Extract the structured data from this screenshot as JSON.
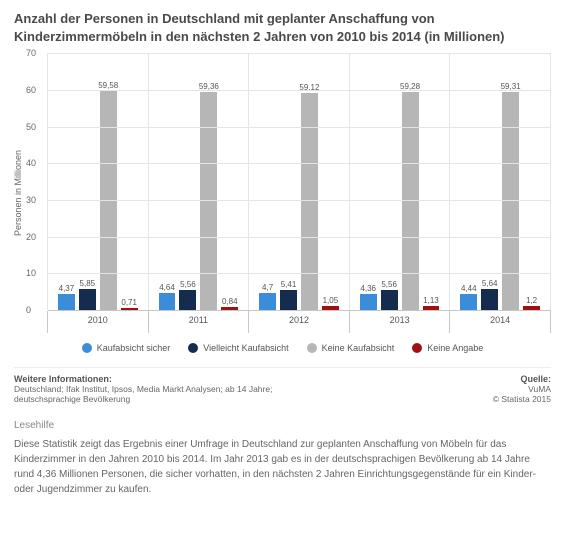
{
  "title": "Anzahl der Personen in Deutschland mit geplanter Anschaffung von Kinderzimmermöbeln in den nächsten 2 Jahren von 2010 bis 2014 (in Millionen)",
  "chart": {
    "type": "bar",
    "ylabel": "Personen in Millionen",
    "ylim": [
      0,
      70
    ],
    "yticks": [
      0,
      10,
      20,
      30,
      40,
      50,
      60,
      70
    ],
    "grid_color": "#e5e5e5",
    "axis_color": "#c6c6c6",
    "background_color": "#ffffff",
    "label_fontsize": 9,
    "value_fontsize": 8,
    "categories": [
      "2010",
      "2011",
      "2012",
      "2013",
      "2014"
    ],
    "series": [
      {
        "name": "Kaufabsicht sicher",
        "color": "#3b8cd9",
        "values": [
          4.37,
          4.64,
          4.7,
          4.36,
          4.44
        ],
        "labels": [
          "4,37",
          "4,64",
          "4,7",
          "4,36",
          "4,44"
        ]
      },
      {
        "name": "Vielleicht Kaufabsicht",
        "color": "#152c4e",
        "values": [
          5.85,
          5.56,
          5.41,
          5.56,
          5.64
        ],
        "labels": [
          "5,85",
          "5,56",
          "5,41",
          "5,56",
          "5,64"
        ]
      },
      {
        "name": "Keine Kaufabsicht",
        "color": "#b6b6b6",
        "values": [
          59.58,
          59.36,
          59.12,
          59.28,
          59.31
        ],
        "labels": [
          "59,58",
          "59,36",
          "59,12",
          "59,28",
          "59,31"
        ]
      },
      {
        "name": "Keine Angabe",
        "color": "#a01212",
        "values": [
          0.71,
          0.84,
          1.05,
          1.13,
          1.2
        ],
        "labels": [
          "0,71",
          "0,84",
          "1,05",
          "1,13",
          "1,2"
        ]
      }
    ]
  },
  "meta": {
    "left_title": "Weitere Informationen:",
    "left_line1": "Deutschland; Ifak Institut, Ipsos, Media Markt Analysen; ab 14 Jahre;",
    "left_line2": "deutschsprachige Bevölkerung",
    "right_title": "Quelle:",
    "right_line1": "VuMA",
    "right_line2": "© Statista 2015"
  },
  "lesehilfe": {
    "heading": "Lesehilfe",
    "text": "Diese Statistik zeigt das Ergebnis einer Umfrage in Deutschland zur geplanten Anschaffung von Möbeln für das Kinderzimmer in den Jahren 2010 bis 2014. Im Jahr 2013 gab es in der deutschsprachigen Bevölkerung ab 14 Jahre rund 4,36 Millionen Personen, die sicher vorhatten, in den nächsten 2 Jahren Einrichtungsgegenstände für ein Kinder- oder Jugendzimmer zu kaufen."
  }
}
